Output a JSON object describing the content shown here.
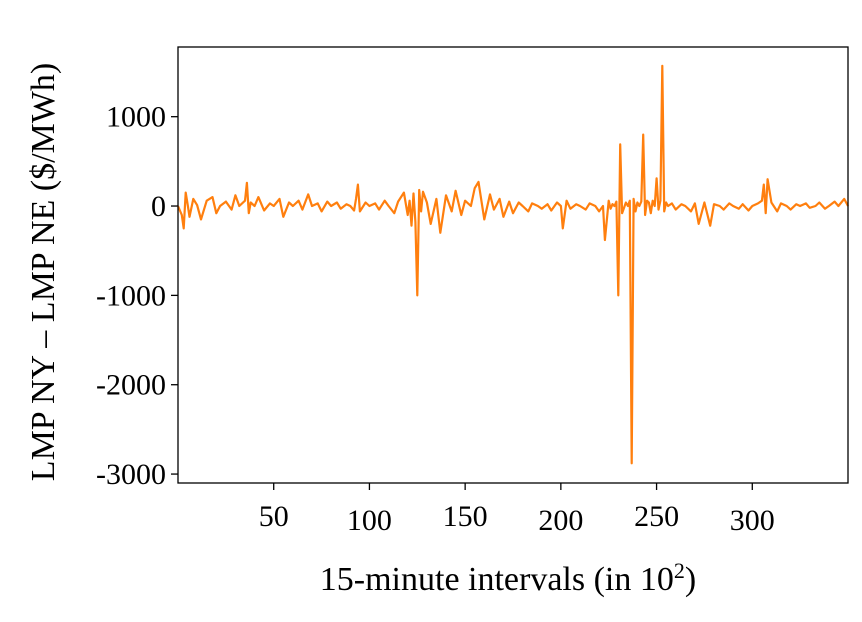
{
  "chart_data": {
    "type": "line",
    "xlabel": "15-minute intervals (in 10",
    "xlabel_sup": "2",
    "xlabel_end": ")",
    "ylabel": "LMP NY – LMP NE ($/MWh)",
    "xlim": [
      0,
      350
    ],
    "ylim": [
      -3100,
      1780
    ],
    "x_ticks": [
      50,
      100,
      150,
      200,
      250,
      300
    ],
    "x_tick_labels": [
      "50",
      "100",
      "150",
      "200",
      "250",
      "300"
    ],
    "y_ticks": [
      1000,
      0,
      -1000,
      -2000,
      -3000
    ],
    "y_tick_labels": [
      "1000",
      "0",
      "-1000",
      "-2000",
      "-3000"
    ],
    "grid": false,
    "series": [
      {
        "color": "#ff7f0e",
        "x": [
          0,
          2,
          3,
          4,
          5,
          6,
          8,
          10,
          12,
          15,
          18,
          20,
          22,
          25,
          28,
          30,
          32,
          35,
          36,
          37,
          38,
          40,
          42,
          45,
          48,
          50,
          53,
          55,
          58,
          60,
          63,
          65,
          68,
          70,
          73,
          75,
          78,
          80,
          83,
          85,
          88,
          90,
          92,
          93,
          94,
          95,
          98,
          100,
          103,
          105,
          108,
          110,
          113,
          115,
          118,
          120,
          121,
          122,
          123,
          124,
          125,
          126,
          127,
          128,
          130,
          132,
          135,
          137,
          140,
          143,
          145,
          148,
          150,
          153,
          155,
          157,
          160,
          163,
          165,
          168,
          170,
          173,
          175,
          178,
          180,
          183,
          185,
          188,
          190,
          193,
          195,
          198,
          200,
          201,
          203,
          205,
          208,
          210,
          213,
          215,
          218,
          220,
          222,
          223,
          225,
          226,
          227,
          228,
          229,
          230,
          231,
          232,
          234,
          235,
          236,
          237,
          238,
          239,
          240,
          241,
          242,
          243,
          244,
          245,
          246,
          247,
          248,
          249,
          250,
          251,
          252,
          253,
          254,
          255,
          256,
          258,
          260,
          263,
          265,
          268,
          270,
          272,
          275,
          278,
          280,
          283,
          285,
          288,
          290,
          293,
          295,
          298,
          300,
          303,
          305,
          306,
          307,
          308,
          310,
          313,
          315,
          318,
          320,
          323,
          325,
          328,
          330,
          333,
          335,
          338,
          340,
          343,
          345,
          348,
          350
        ],
        "y": [
          0,
          -100,
          -250,
          150,
          20,
          -120,
          80,
          10,
          -150,
          60,
          100,
          -80,
          0,
          50,
          -40,
          120,
          0,
          60,
          260,
          -80,
          40,
          0,
          100,
          -50,
          30,
          0,
          80,
          -120,
          40,
          0,
          60,
          -40,
          130,
          0,
          30,
          -60,
          50,
          0,
          40,
          -30,
          20,
          0,
          -50,
          80,
          240,
          -60,
          40,
          0,
          30,
          -40,
          60,
          0,
          -80,
          50,
          150,
          -100,
          60,
          -220,
          140,
          -180,
          -1000,
          180,
          -60,
          160,
          40,
          -200,
          80,
          -300,
          120,
          -60,
          170,
          -100,
          60,
          0,
          200,
          270,
          -150,
          130,
          -40,
          80,
          -120,
          50,
          -80,
          40,
          0,
          -60,
          30,
          0,
          -30,
          20,
          -50,
          40,
          0,
          -250,
          60,
          -30,
          20,
          0,
          -40,
          30,
          0,
          -60,
          0,
          -380,
          60,
          -30,
          20,
          0,
          50,
          -1000,
          690,
          -80,
          40,
          0,
          60,
          -2880,
          80,
          -60,
          40,
          0,
          50,
          800,
          -100,
          60,
          40,
          -80,
          60,
          0,
          310,
          -40,
          60,
          1570,
          -60,
          40,
          0,
          30,
          -40,
          20,
          0,
          -60,
          30,
          -200,
          40,
          -220,
          20,
          0,
          -40,
          30,
          0,
          -30,
          20,
          -50,
          0,
          30,
          60,
          240,
          -80,
          300,
          40,
          -60,
          30,
          0,
          -40,
          20,
          0,
          30,
          -20,
          0,
          40,
          -30,
          0,
          50,
          0,
          80,
          0
        ]
      }
    ]
  }
}
